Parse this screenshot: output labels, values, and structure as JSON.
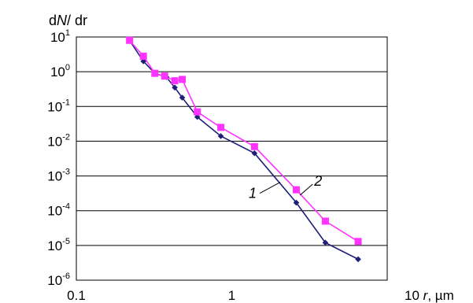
{
  "chart_data": {
    "type": "line",
    "title": "",
    "ylabel": {
      "pre": "d",
      "italic": "N",
      "post": "/ dr"
    },
    "xlabel": {
      "value": "10",
      "sep": " ",
      "var": "r",
      "unit": ", µm"
    },
    "xscale": "log",
    "yscale": "log",
    "xlim": [
      0.1,
      10
    ],
    "ylim": [
      1e-06,
      10
    ],
    "x_ticks": [
      {
        "value": 0.1,
        "label": "0.1"
      },
      {
        "value": 1,
        "label": "1"
      }
    ],
    "y_ticks": [
      {
        "value": 10,
        "base": "10",
        "exp": "1"
      },
      {
        "value": 1,
        "base": "10",
        "exp": "0"
      },
      {
        "value": 0.1,
        "base": "10",
        "exp": "-1"
      },
      {
        "value": 0.01,
        "base": "10",
        "exp": "-2"
      },
      {
        "value": 0.001,
        "base": "10",
        "exp": "-3"
      },
      {
        "value": 0.0001,
        "base": "10",
        "exp": "-4"
      },
      {
        "value": 1e-05,
        "base": "10",
        "exp": "-5"
      },
      {
        "value": 1e-06,
        "base": "10",
        "exp": "-6"
      }
    ],
    "grid": {
      "horizontal": true,
      "vertical": false
    },
    "legend": "none",
    "series": [
      {
        "label": "1",
        "color": "#1f1f7a",
        "marker": "diamond",
        "x": [
          0.22,
          0.27,
          0.32,
          0.38,
          0.43,
          0.48,
          0.6,
          0.85,
          1.4,
          2.6,
          4.0,
          6.5
        ],
        "y": [
          8,
          2.0,
          0.9,
          0.7,
          0.35,
          0.18,
          0.05,
          0.014,
          0.0045,
          0.00017,
          1.2e-05,
          4e-06
        ]
      },
      {
        "label": "2",
        "color": "#ff33ff",
        "marker": "square",
        "x": [
          0.22,
          0.27,
          0.32,
          0.37,
          0.43,
          0.48,
          0.6,
          0.85,
          1.4,
          2.6,
          4.0,
          6.5
        ],
        "y": [
          8,
          2.8,
          0.9,
          0.75,
          0.55,
          0.6,
          0.07,
          0.025,
          0.007,
          0.0004,
          5e-05,
          1.3e-05
        ]
      }
    ],
    "annotations": [
      {
        "text": "1",
        "series": 0
      },
      {
        "text": "2",
        "series": 1
      }
    ]
  }
}
